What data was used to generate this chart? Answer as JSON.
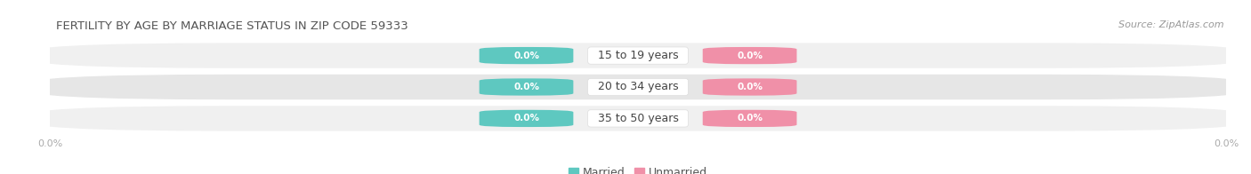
{
  "title": "FERTILITY BY AGE BY MARRIAGE STATUS IN ZIP CODE 59333",
  "source": "Source: ZipAtlas.com",
  "age_groups": [
    "15 to 19 years",
    "20 to 34 years",
    "35 to 50 years"
  ],
  "married_values": [
    0.0,
    0.0,
    0.0
  ],
  "unmarried_values": [
    0.0,
    0.0,
    0.0
  ],
  "married_color": "#5ec8c0",
  "unmarried_color": "#f090a8",
  "bar_bg_color_odd": "#f0f0f0",
  "bar_bg_color_even": "#e6e6e6",
  "title_fontsize": 9.5,
  "source_fontsize": 8,
  "label_fontsize": 8,
  "value_fontsize": 7.5,
  "background_color": "#ffffff",
  "axis_label_color": "#aaaaaa",
  "text_color": "#555555",
  "center_label_color": "#444444"
}
